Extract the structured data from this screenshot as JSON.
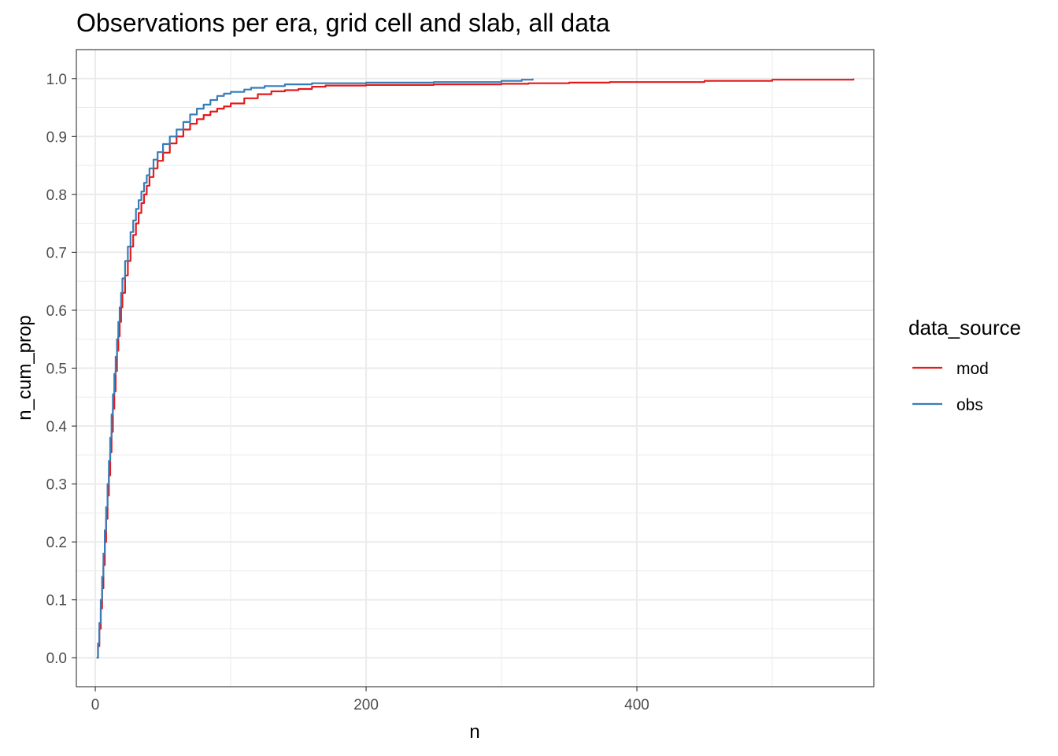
{
  "chart_data": {
    "type": "line",
    "title": "Observations per era, grid cell and slab, all data",
    "xlabel": "n",
    "ylabel": "n_cum_prop",
    "xlim": [
      -14,
      575
    ],
    "ylim": [
      -0.05,
      1.05
    ],
    "x_ticks": [
      0,
      200,
      400
    ],
    "x_minor": [
      100,
      300,
      500
    ],
    "y_ticks": [
      0.0,
      0.1,
      0.2,
      0.3,
      0.4,
      0.5,
      0.6,
      0.7,
      0.8,
      0.9,
      1.0
    ],
    "y_tick_labels": [
      "0.0",
      "0.1",
      "0.2",
      "0.3",
      "0.4",
      "0.5",
      "0.6",
      "0.7",
      "0.8",
      "0.9",
      "1.0"
    ],
    "grid": true,
    "legend": {
      "title": "data_source",
      "position": "right"
    },
    "series": [
      {
        "name": "mod",
        "color": "#e41a1c",
        "x": [
          1,
          2,
          3,
          4,
          5,
          6,
          7,
          8,
          9,
          10,
          11,
          12,
          13,
          14,
          15,
          16,
          17,
          18,
          19,
          20,
          22,
          24,
          26,
          28,
          30,
          32,
          34,
          36,
          38,
          40,
          43,
          46,
          50,
          55,
          60,
          65,
          70,
          75,
          80,
          85,
          90,
          95,
          100,
          110,
          120,
          130,
          140,
          150,
          160,
          170,
          200,
          250,
          300,
          320,
          350,
          380,
          450,
          500,
          560
        ],
        "y": [
          0.0,
          0.02,
          0.05,
          0.085,
          0.12,
          0.16,
          0.2,
          0.24,
          0.28,
          0.315,
          0.355,
          0.39,
          0.43,
          0.46,
          0.495,
          0.53,
          0.555,
          0.58,
          0.605,
          0.63,
          0.66,
          0.685,
          0.71,
          0.73,
          0.75,
          0.768,
          0.785,
          0.8,
          0.815,
          0.83,
          0.845,
          0.858,
          0.872,
          0.888,
          0.9,
          0.912,
          0.922,
          0.93,
          0.937,
          0.943,
          0.948,
          0.952,
          0.957,
          0.966,
          0.973,
          0.978,
          0.98,
          0.982,
          0.986,
          0.988,
          0.989,
          0.99,
          0.991,
          0.992,
          0.993,
          0.994,
          0.996,
          0.998,
          1.0
        ]
      },
      {
        "name": "obs",
        "color": "#377eb8",
        "x": [
          1,
          2,
          3,
          4,
          5,
          6,
          7,
          8,
          9,
          10,
          11,
          12,
          13,
          14,
          15,
          16,
          17,
          18,
          19,
          20,
          22,
          24,
          26,
          28,
          30,
          32,
          34,
          36,
          38,
          40,
          43,
          46,
          50,
          55,
          60,
          65,
          70,
          75,
          80,
          85,
          90,
          95,
          100,
          110,
          115,
          125,
          140,
          160,
          200,
          250,
          300,
          315,
          323
        ],
        "y": [
          0.0,
          0.025,
          0.06,
          0.1,
          0.14,
          0.18,
          0.22,
          0.26,
          0.3,
          0.34,
          0.38,
          0.42,
          0.455,
          0.49,
          0.52,
          0.55,
          0.58,
          0.605,
          0.63,
          0.655,
          0.685,
          0.71,
          0.735,
          0.755,
          0.775,
          0.79,
          0.805,
          0.82,
          0.833,
          0.845,
          0.86,
          0.873,
          0.887,
          0.9,
          0.912,
          0.925,
          0.938,
          0.948,
          0.955,
          0.963,
          0.97,
          0.974,
          0.977,
          0.981,
          0.984,
          0.987,
          0.99,
          0.992,
          0.993,
          0.994,
          0.996,
          0.998,
          1.0
        ]
      }
    ]
  }
}
